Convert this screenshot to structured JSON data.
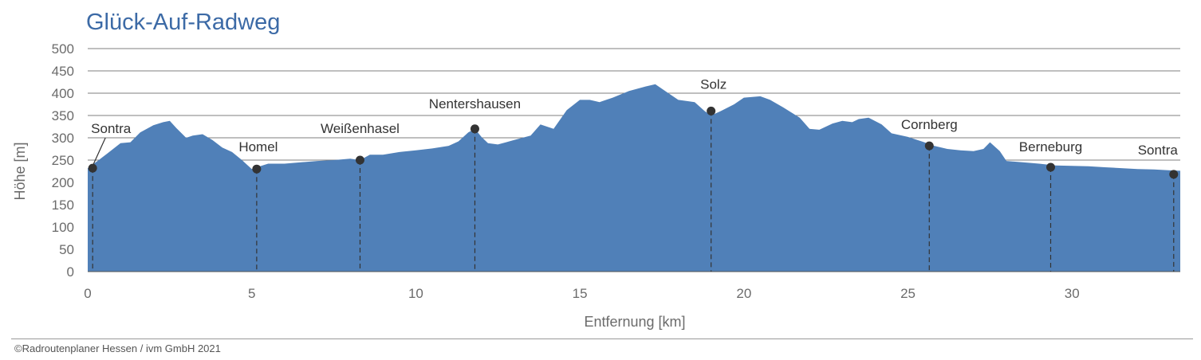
{
  "title": "Glück-Auf-Radweg",
  "footer": "©Radroutenplaner Hessen / ivm GmbH 2021",
  "colors": {
    "area": "#5080b8",
    "title": "#3c6aa6",
    "grid": "#555555",
    "marker": "#333333"
  },
  "chart_data": {
    "type": "area",
    "xlabel": "Entfernung [km]",
    "ylabel": "Höhe [m]",
    "xlim": [
      0,
      33.3
    ],
    "ylim": [
      0,
      500
    ],
    "yticks": [
      0,
      50,
      100,
      150,
      200,
      250,
      300,
      350,
      400,
      450,
      500
    ],
    "xticks": [
      0,
      5,
      10,
      15,
      20,
      25,
      30
    ],
    "grid": "horizontal",
    "series": [
      {
        "x": [
          0,
          0.3,
          0.6,
          1.0,
          1.3,
          1.6,
          2.0,
          2.3,
          2.5,
          2.7,
          3.0,
          3.2,
          3.5,
          3.8,
          4.1,
          4.4,
          4.7,
          5.0,
          5.2,
          5.5,
          6.0,
          6.5,
          7.0,
          7.5,
          8.0,
          8.3,
          8.6,
          9.0,
          9.5,
          10.0,
          10.5,
          11.0,
          11.3,
          11.6,
          11.8,
          12.0,
          12.2,
          12.5,
          13.0,
          13.5,
          13.8,
          14.2,
          14.6,
          15.0,
          15.3,
          15.6,
          16.0,
          16.5,
          17.0,
          17.3,
          17.6,
          18.0,
          18.5,
          18.8,
          19.0,
          19.3,
          19.7,
          20.0,
          20.5,
          20.8,
          21.2,
          21.7,
          22.0,
          22.3,
          22.7,
          23.0,
          23.3,
          23.5,
          23.8,
          24.2,
          24.5,
          25.0,
          25.5,
          25.8,
          26.2,
          26.6,
          27.0,
          27.3,
          27.5,
          27.8,
          28.0,
          28.5,
          29.0,
          29.5,
          30.0,
          30.5,
          31.0,
          31.5,
          32.0,
          32.5,
          33.0,
          33.3
        ],
        "y": [
          232,
          248,
          265,
          288,
          290,
          312,
          328,
          335,
          338,
          322,
          300,
          305,
          308,
          295,
          278,
          268,
          250,
          230,
          235,
          242,
          242,
          245,
          248,
          250,
          253,
          250,
          262,
          262,
          268,
          272,
          276,
          282,
          292,
          312,
          320,
          302,
          288,
          285,
          295,
          305,
          330,
          320,
          362,
          385,
          385,
          380,
          390,
          405,
          415,
          420,
          405,
          385,
          380,
          360,
          350,
          360,
          375,
          390,
          393,
          385,
          368,
          345,
          320,
          318,
          332,
          338,
          335,
          342,
          345,
          330,
          310,
          302,
          290,
          282,
          275,
          272,
          270,
          275,
          290,
          270,
          248,
          245,
          242,
          238,
          237,
          236,
          234,
          232,
          230,
          229,
          227,
          226
        ]
      }
    ],
    "markers": [
      {
        "name": "Sontra",
        "x": 0.15,
        "y": 232
      },
      {
        "name": "Homel",
        "x": 5.15,
        "y": 230
      },
      {
        "name": "Weißenhasel",
        "x": 8.3,
        "y": 250
      },
      {
        "name": "Nentershausen",
        "x": 11.8,
        "y": 320
      },
      {
        "name": "Solz",
        "x": 19.0,
        "y": 360
      },
      {
        "name": "Cornberg",
        "x": 25.65,
        "y": 282
      },
      {
        "name": "Berneburg",
        "x": 29.35,
        "y": 234
      },
      {
        "name": "Sontra",
        "x": 33.1,
        "y": 218
      }
    ]
  }
}
